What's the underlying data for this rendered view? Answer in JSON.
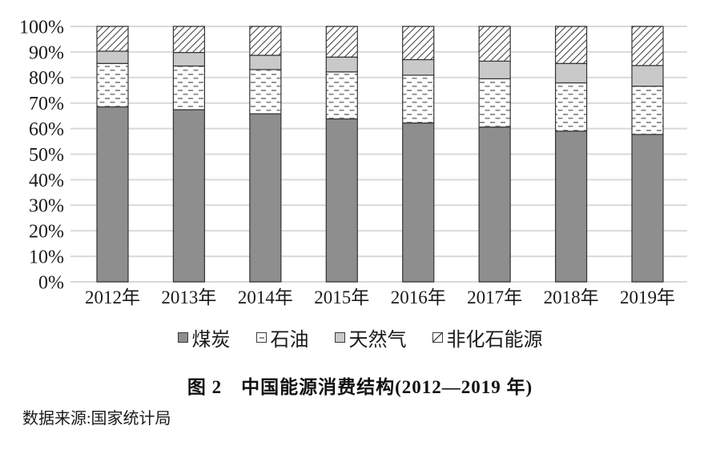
{
  "figure": {
    "title": "图 2　中国能源消费结构(2012—2019 年)",
    "source": "数据来源:国家统计局"
  },
  "chart_data": {
    "type": "bar",
    "subtype": "stacked-percentage-bar",
    "title": "图 2　中国能源消费结构(2012—2019 年)",
    "source_note": "数据来源:国家统计局",
    "categories": [
      "2012年",
      "2013年",
      "2014年",
      "2015年",
      "2016年",
      "2017年",
      "2018年",
      "2019年"
    ],
    "series": [
      {
        "id": "coal",
        "name": "煤炭",
        "pattern": "solid-dark",
        "values": [
          68.5,
          67.4,
          65.8,
          63.8,
          62.2,
          60.6,
          59.0,
          57.7
        ]
      },
      {
        "id": "oil",
        "name": "石油",
        "pattern": "dashes",
        "values": [
          17.0,
          17.1,
          17.3,
          18.4,
          18.7,
          18.9,
          18.9,
          18.9
        ]
      },
      {
        "id": "natural-gas",
        "name": "天然气",
        "pattern": "solid-light",
        "values": [
          4.8,
          5.3,
          5.6,
          5.8,
          6.1,
          6.9,
          7.6,
          8.1
        ]
      },
      {
        "id": "non-fossil",
        "name": "非化石能源",
        "pattern": "diagonal",
        "values": [
          9.7,
          10.2,
          11.3,
          12.0,
          13.0,
          13.6,
          14.5,
          15.3
        ]
      }
    ],
    "xlabel": "",
    "ylabel": "",
    "ylim": [
      0,
      100
    ],
    "y_ticks": [
      "0%",
      "10%",
      "20%",
      "30%",
      "40%",
      "50%",
      "60%",
      "70%",
      "80%",
      "90%",
      "100%"
    ],
    "grid": true,
    "legend_position": "bottom",
    "colors": {
      "coal_fill": "#8e8e8e",
      "natural_gas_fill": "#c9c9c9",
      "oil_dash": "#8a8a8a",
      "hatch_stroke": "#4a4a4a",
      "segment_border": "#333333",
      "gridline": "#d9d9d9",
      "background": "#ffffff",
      "text": "#1a1a1a"
    }
  }
}
